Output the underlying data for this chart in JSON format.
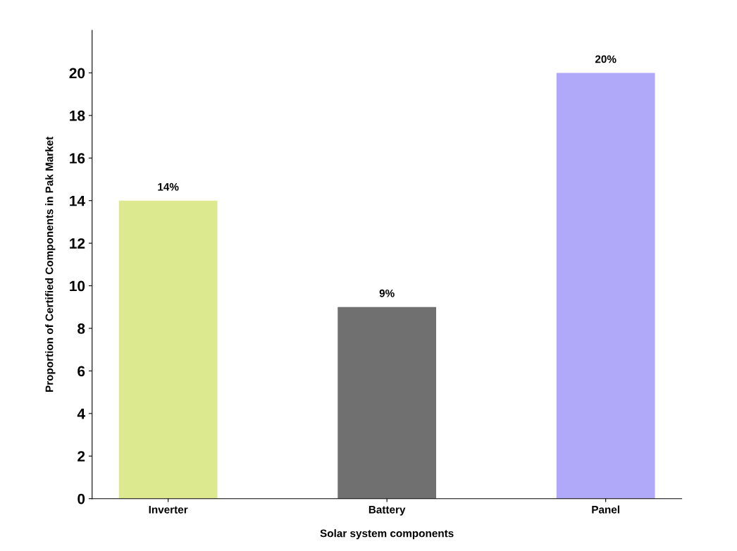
{
  "chart_data": {
    "type": "bar",
    "xlabel": "Solar system components",
    "ylabel": "Proportion of Certified Components in Pak Market",
    "categories": [
      "Inverter",
      "Battery",
      "Panel"
    ],
    "values": [
      14,
      9,
      20
    ],
    "colors": [
      "#dce98f",
      "#707070",
      "#b0a8f8"
    ],
    "value_labels": [
      "14%",
      "9%",
      "20%"
    ],
    "ylim": [
      0,
      22
    ],
    "yticks": [
      0,
      2,
      4,
      6,
      8,
      10,
      12,
      14,
      16,
      18,
      20
    ],
    "grid": false
  }
}
